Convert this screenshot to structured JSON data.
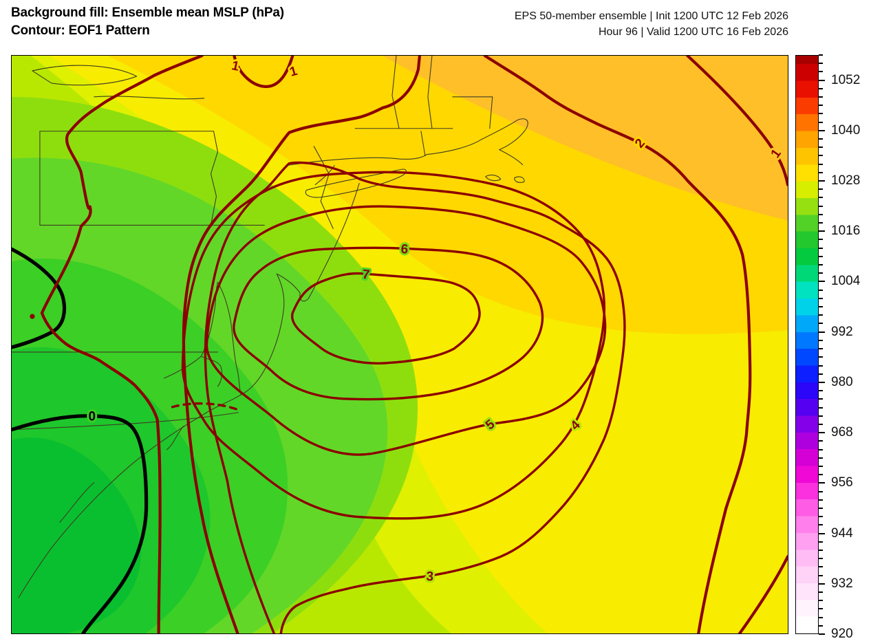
{
  "header": {
    "title_line1": "Background fill: Ensemble mean MSLP (hPa)",
    "title_line2": "Contour: EOF1 Pattern",
    "info_line1": "EPS 50-member ensemble | Init 1200 UTC 12 Feb 2026",
    "info_line2": "Hour 96 | Valid 1200 UTC 16 Feb 2026"
  },
  "chart_data": {
    "type": "filled_contour_map",
    "fill_field": "Ensemble mean MSLP (hPa)",
    "contour_field": "EOF1 Pattern",
    "contour_line_color": "#8b0000",
    "zero_contour_color": "#000000",
    "contour_levels_visible": [
      0,
      1,
      2,
      3,
      4,
      5,
      6,
      7
    ],
    "contour_labels": [
      {
        "text": "7"
      },
      {
        "text": "6"
      },
      {
        "text": "5"
      },
      {
        "text": "4"
      },
      {
        "text": "3"
      },
      {
        "text": "2"
      },
      {
        "text": "1"
      },
      {
        "text": "1"
      },
      {
        "text": "1"
      },
      {
        "text": "0"
      }
    ],
    "pattern_description": "Closed positive EOF1 anomaly centered over ensemble-mean low (green MSLP minimum ~1004-1012 hPa) off the Mid-Atlantic coast; values decrease outward to 0 (black) southwest, higher MSLP (yellow-orange ~1020-1032 hPa) to the northeast",
    "colorbar": {
      "unit": "hPa",
      "min": 920,
      "max": 1058,
      "major_tick_step": 12,
      "minor_tick_step": 2,
      "tick_labels": [
        "1052",
        "1040",
        "1028",
        "1016",
        "1004",
        "992",
        "980",
        "968",
        "956",
        "944",
        "932",
        "920"
      ],
      "colormap_stops": [
        {
          "value": 920,
          "color": "#ffffff"
        },
        {
          "value": 924,
          "color": "#fff4fd"
        },
        {
          "value": 928,
          "color": "#ffe4fb"
        },
        {
          "value": 932,
          "color": "#ffd2f8"
        },
        {
          "value": 936,
          "color": "#ffbcf5"
        },
        {
          "value": 940,
          "color": "#ffa0f1"
        },
        {
          "value": 944,
          "color": "#ff80ec"
        },
        {
          "value": 948,
          "color": "#ff5ce6"
        },
        {
          "value": 952,
          "color": "#fb30df"
        },
        {
          "value": 956,
          "color": "#ef08d6"
        },
        {
          "value": 960,
          "color": "#d400d6"
        },
        {
          "value": 964,
          "color": "#ae00df"
        },
        {
          "value": 968,
          "color": "#8300e8"
        },
        {
          "value": 972,
          "color": "#5500f0"
        },
        {
          "value": 976,
          "color": "#2b06f8"
        },
        {
          "value": 980,
          "color": "#0d1fff"
        },
        {
          "value": 984,
          "color": "#0048ff"
        },
        {
          "value": 988,
          "color": "#0078ff"
        },
        {
          "value": 992,
          "color": "#00a8fa"
        },
        {
          "value": 996,
          "color": "#00d2ea"
        },
        {
          "value": 1000,
          "color": "#00e2c0"
        },
        {
          "value": 1004,
          "color": "#00d878"
        },
        {
          "value": 1008,
          "color": "#04ca40"
        },
        {
          "value": 1012,
          "color": "#22c82e"
        },
        {
          "value": 1016,
          "color": "#52d226"
        },
        {
          "value": 1020,
          "color": "#96e012"
        },
        {
          "value": 1024,
          "color": "#d8ee00"
        },
        {
          "value": 1028,
          "color": "#ffe000"
        },
        {
          "value": 1032,
          "color": "#ffc400"
        },
        {
          "value": 1036,
          "color": "#ffa400"
        },
        {
          "value": 1040,
          "color": "#ff7400"
        },
        {
          "value": 1044,
          "color": "#fb3c00"
        },
        {
          "value": 1048,
          "color": "#ea1000"
        },
        {
          "value": 1052,
          "color": "#cc0000"
        },
        {
          "value": 1056,
          "color": "#a80000"
        }
      ]
    }
  }
}
